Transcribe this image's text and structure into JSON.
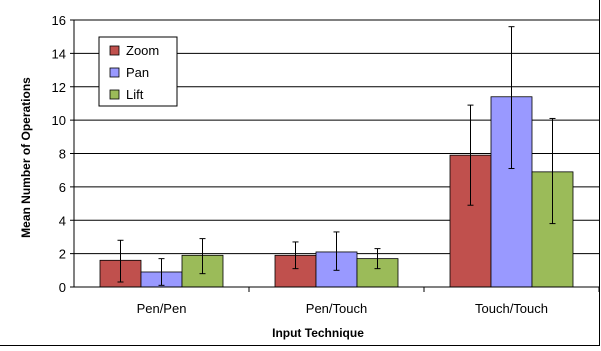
{
  "chart_data": {
    "type": "bar",
    "title": "",
    "xlabel": "Input Technique",
    "ylabel": "Mean Number of Operations",
    "categories": [
      "Pen/Pen",
      "Pen/Touch",
      "Touch/Touch"
    ],
    "ylim": [
      0,
      16
    ],
    "yticks": [
      0,
      2,
      4,
      6,
      8,
      10,
      12,
      14,
      16
    ],
    "grid": true,
    "legend_position": "top-left",
    "error_bars": true,
    "series": [
      {
        "name": "Zoom",
        "color": "#C0504D",
        "values": [
          1.6,
          1.9,
          7.9
        ],
        "error_low": [
          0.3,
          1.1,
          4.9
        ],
        "error_high": [
          2.8,
          2.7,
          10.9
        ]
      },
      {
        "name": "Pan",
        "color": "#9999FF",
        "values": [
          0.9,
          2.1,
          11.4
        ],
        "error_low": [
          0.1,
          1.0,
          7.1
        ],
        "error_high": [
          1.7,
          3.3,
          15.6
        ]
      },
      {
        "name": "Lift",
        "color": "#9BBB59",
        "values": [
          1.9,
          1.7,
          6.9
        ],
        "error_low": [
          0.8,
          1.1,
          3.8
        ],
        "error_high": [
          2.9,
          2.3,
          10.1
        ]
      }
    ]
  }
}
